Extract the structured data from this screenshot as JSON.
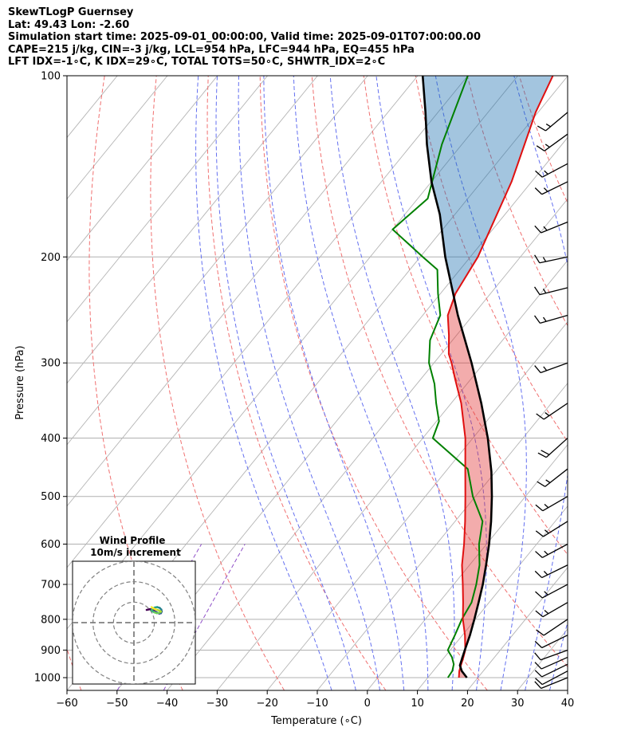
{
  "header": {
    "line1": "SkewTLogP Guernsey",
    "line2": "Lat: 49.43   Lon: -2.60",
    "line3": "Simulation start time: 2025-09-01_00:00:00, Valid time: 2025-09-01T07:00:00.00",
    "line4": "CAPE=215 j/kg, CIN=-3 j/kg, LCL=954 hPa, LFC=944 hPa, EQ=455 hPa",
    "line5": "LFT IDX=-1∘C, K IDX=29∘C, TOTAL TOTS=50∘C, SHWTR_IDX=2∘C"
  },
  "chart_data": {
    "type": "skewt",
    "xlabel": "Temperature (∘C)",
    "ylabel": "Pressure (hPa)",
    "xlim": [
      -60,
      40
    ],
    "ylim": [
      1050,
      100
    ],
    "x_ticks": [
      -60,
      -50,
      -40,
      -30,
      -20,
      -10,
      0,
      10,
      20,
      30,
      40
    ],
    "x_tick_labels": [
      "−60",
      "−50",
      "−40",
      "−30",
      "−20",
      "−10",
      "0",
      "10",
      "20",
      "30",
      "40"
    ],
    "y_ticks": [
      100,
      200,
      300,
      400,
      500,
      600,
      700,
      800,
      900,
      1000
    ],
    "y_tick_labels": [
      "100",
      "200",
      "300",
      "400",
      "500",
      "600",
      "700",
      "800",
      "900",
      "1000"
    ],
    "temperature": {
      "name": "Temperature",
      "color": "#e01010",
      "p": [
        1000,
        975,
        950,
        925,
        900,
        850,
        800,
        750,
        700,
        650,
        600,
        550,
        500,
        450,
        400,
        350,
        320,
        300,
        290,
        270,
        250,
        230,
        200,
        180,
        150,
        130,
        115,
        100
      ],
      "t": [
        16.2,
        15.2,
        14.5,
        13.8,
        13.0,
        10.5,
        7.5,
        4.8,
        1.8,
        -1.5,
        -4.5,
        -8.0,
        -12.0,
        -16.5,
        -21.5,
        -28.0,
        -33.0,
        -36.5,
        -38.5,
        -41.5,
        -45.0,
        -47.0,
        -48.5,
        -50.5,
        -54.0,
        -57.5,
        -60.5,
        -63.0
      ]
    },
    "dewpoint": {
      "name": "Dewpoint",
      "color": "#008000",
      "p": [
        1000,
        975,
        950,
        925,
        900,
        850,
        800,
        750,
        700,
        650,
        600,
        550,
        500,
        450,
        400,
        375,
        350,
        325,
        300,
        275,
        250,
        230,
        210,
        200,
        180,
        160,
        130,
        100
      ],
      "t": [
        14.0,
        13.8,
        13.0,
        11.5,
        9.5,
        8.5,
        7.3,
        6.5,
        4.5,
        2.0,
        -1.5,
        -4.5,
        -10.5,
        -16.0,
        -28.0,
        -29.5,
        -33.0,
        -36.5,
        -41.0,
        -44.5,
        -46.5,
        -50.5,
        -54.5,
        -59.5,
        -70.0,
        -68.0,
        -74.0,
        -80.0
      ]
    },
    "parcel_profile": {
      "name": "Parcel",
      "color": "#000000",
      "p": [
        1000,
        975,
        954,
        925,
        900,
        850,
        800,
        750,
        700,
        650,
        600,
        550,
        500,
        455,
        400,
        350,
        300,
        250,
        200,
        170,
        150,
        130,
        115,
        100
      ],
      "t": [
        17.8,
        15.7,
        14.4,
        13.6,
        12.9,
        11.5,
        9.8,
        7.9,
        5.8,
        3.3,
        0.5,
        -2.8,
        -6.7,
        -10.8,
        -17.0,
        -24.0,
        -32.5,
        -43.0,
        -55.0,
        -63.0,
        -70.0,
        -77.0,
        -82.5,
        -89.0
      ]
    },
    "cape_shading": {
      "label": "CAPE",
      "color": "#e03030"
    },
    "cin_shading": {
      "label": "CIN",
      "color": "#1a6faf"
    },
    "dry_adiabats_theta_K": [
      213,
      233,
      253,
      273,
      293,
      313,
      333,
      353,
      373,
      393,
      413,
      433,
      453,
      473
    ],
    "moist_adiabats_C": [
      -10,
      -5,
      0,
      5,
      10,
      15,
      20,
      25,
      30,
      35
    ],
    "isotherm_step": 10,
    "wind_barbs": {
      "p": [
        1000,
        975,
        950,
        925,
        900,
        850,
        800,
        750,
        700,
        650,
        600,
        550,
        500,
        450,
        400,
        350,
        300,
        250,
        225,
        200,
        175,
        150,
        140,
        125,
        115
      ],
      "speed_kt": [
        14,
        12,
        12,
        14,
        14,
        14,
        14,
        16,
        16,
        15,
        15,
        16,
        16,
        18,
        24,
        18,
        16,
        16,
        16,
        17,
        17,
        18,
        17,
        18,
        16
      ],
      "dir_deg": [
        248,
        242,
        244,
        246,
        250,
        244,
        236,
        240,
        242,
        244,
        242,
        238,
        240,
        232,
        228,
        236,
        250,
        254,
        256,
        258,
        248,
        244,
        242,
        234,
        230
      ]
    },
    "inset": {
      "title": "Wind Profile",
      "subtitle": "10m/s increment",
      "rings_ms": [
        10,
        20,
        30
      ],
      "xlim": [
        -30,
        30
      ],
      "ylim": [
        -30,
        30
      ],
      "hodograph_u": [
        6.2,
        7.0,
        7.8,
        8.6,
        9.6,
        10.6,
        11.6,
        12.4,
        13.2,
        13.6,
        13.4,
        12.6,
        11.4,
        10.2,
        9.2,
        8.6,
        9.0,
        10.0,
        11.2,
        12.4,
        13.2,
        12.2,
        10.8,
        9.4,
        8.6
      ],
      "hodograph_v": [
        6.2,
        6.4,
        6.6,
        6.4,
        6.0,
        5.4,
        4.8,
        4.4,
        4.6,
        5.4,
        6.4,
        7.2,
        7.6,
        7.4,
        6.8,
        6.2,
        5.6,
        5.0,
        4.6,
        4.8,
        5.4,
        6.0,
        6.4,
        7.0,
        7.6
      ]
    }
  }
}
